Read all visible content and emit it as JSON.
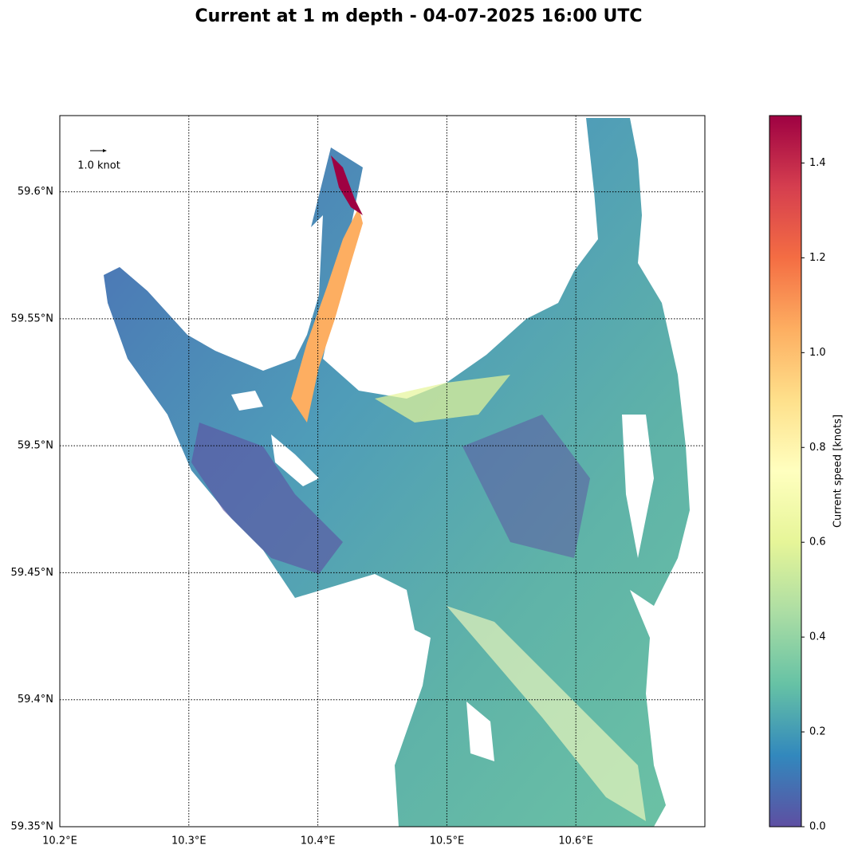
{
  "chart_data": {
    "type": "map",
    "title": "Current at 1 m depth - 04-07-2025 16:00 UTC",
    "xlim": [
      10.2,
      10.7
    ],
    "ylim": [
      59.35,
      59.63
    ],
    "xticks": [
      {
        "value": 10.2,
        "label": "10.2°E"
      },
      {
        "value": 10.3,
        "label": "10.3°E"
      },
      {
        "value": 10.4,
        "label": "10.4°E"
      },
      {
        "value": 10.5,
        "label": "10.5°E"
      },
      {
        "value": 10.6,
        "label": "10.6°E"
      }
    ],
    "yticks": [
      {
        "value": 59.35,
        "label": "59.35°N"
      },
      {
        "value": 59.4,
        "label": "59.4°N"
      },
      {
        "value": 59.45,
        "label": "59.45°N"
      },
      {
        "value": 59.5,
        "label": "59.5°N"
      },
      {
        "value": 59.55,
        "label": "59.55°N"
      },
      {
        "value": 59.6,
        "label": "59.6°N"
      }
    ],
    "grid": true,
    "quiver_key": "1.0 knot",
    "colorbar": {
      "label": "Current speed [knots]",
      "lim": [
        0,
        1.5
      ],
      "ticks": [
        {
          "value": 0,
          "label": "0.0"
        },
        0.2,
        0.4,
        0.6,
        0.8,
        {
          "value": 1,
          "label": "1.0"
        },
        1.2,
        1.4
      ],
      "colors": [
        "#5e4fa2",
        "#3288bd",
        "#66c2a5",
        "#abdda4",
        "#e6f598",
        "#ffffbf",
        "#fee08b",
        "#fdae61",
        "#f46d43",
        "#d53e4f",
        "#9e0142"
      ]
    }
  }
}
